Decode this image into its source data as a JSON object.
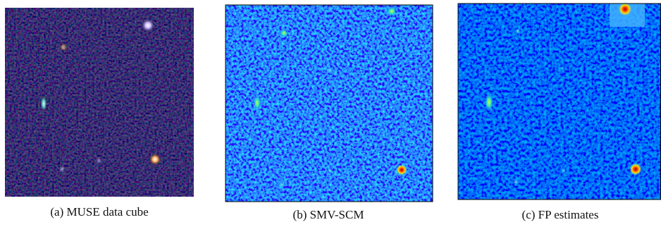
{
  "figure": {
    "panels": [
      {
        "caption": "(a) MUSE data cube"
      },
      {
        "caption": "(b) SMV-SCM"
      },
      {
        "caption": "(c) FP estimates"
      }
    ]
  }
}
